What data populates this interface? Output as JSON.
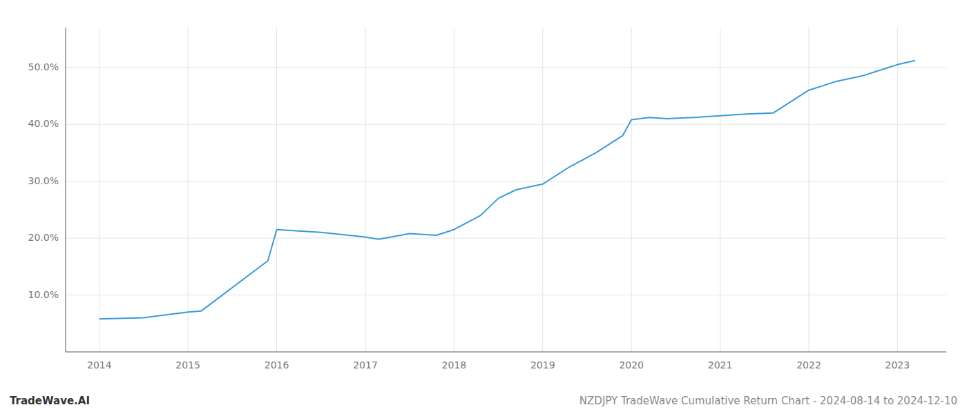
{
  "chart_data": {
    "type": "line",
    "title": "NZDJPY TradeWave Cumulative Return Chart - 2024-08-14 to 2024-12-10",
    "annotations": [
      "TradeWave.AI"
    ],
    "x": [
      2014.0,
      2014.5,
      2015.0,
      2015.15,
      2015.9,
      2016.0,
      2016.5,
      2017.0,
      2017.15,
      2017.5,
      2017.8,
      2018.0,
      2018.3,
      2018.5,
      2018.7,
      2019.0,
      2019.3,
      2019.6,
      2019.9,
      2020.0,
      2020.2,
      2020.4,
      2020.7,
      2021.0,
      2021.3,
      2021.6,
      2022.0,
      2022.3,
      2022.6,
      2022.9,
      2023.0,
      2023.2
    ],
    "values": [
      5.8,
      6.0,
      7.0,
      7.2,
      16.0,
      21.5,
      21.0,
      20.2,
      19.8,
      20.8,
      20.5,
      21.5,
      24.0,
      27.0,
      28.5,
      29.5,
      32.5,
      35.0,
      38.0,
      40.8,
      41.2,
      41.0,
      41.2,
      41.5,
      41.8,
      42.0,
      46.0,
      47.5,
      48.5,
      50.0,
      50.5,
      51.2
    ],
    "color": "#3a9ad9",
    "xlim": [
      2013.62,
      2023.55
    ],
    "ylim": [
      0,
      57
    ],
    "xticks": [
      2014,
      2015,
      2016,
      2017,
      2018,
      2019,
      2020,
      2021,
      2022,
      2023
    ],
    "yticks": [
      {
        "value": 10.0,
        "label": "10.0%"
      },
      {
        "value": 20.0,
        "label": "20.0%"
      },
      {
        "value": 30.0,
        "label": "30.0%"
      },
      {
        "value": 40.0,
        "label": "40.0%"
      },
      {
        "value": 50.0,
        "label": "50.0%"
      }
    ],
    "grid": true
  }
}
